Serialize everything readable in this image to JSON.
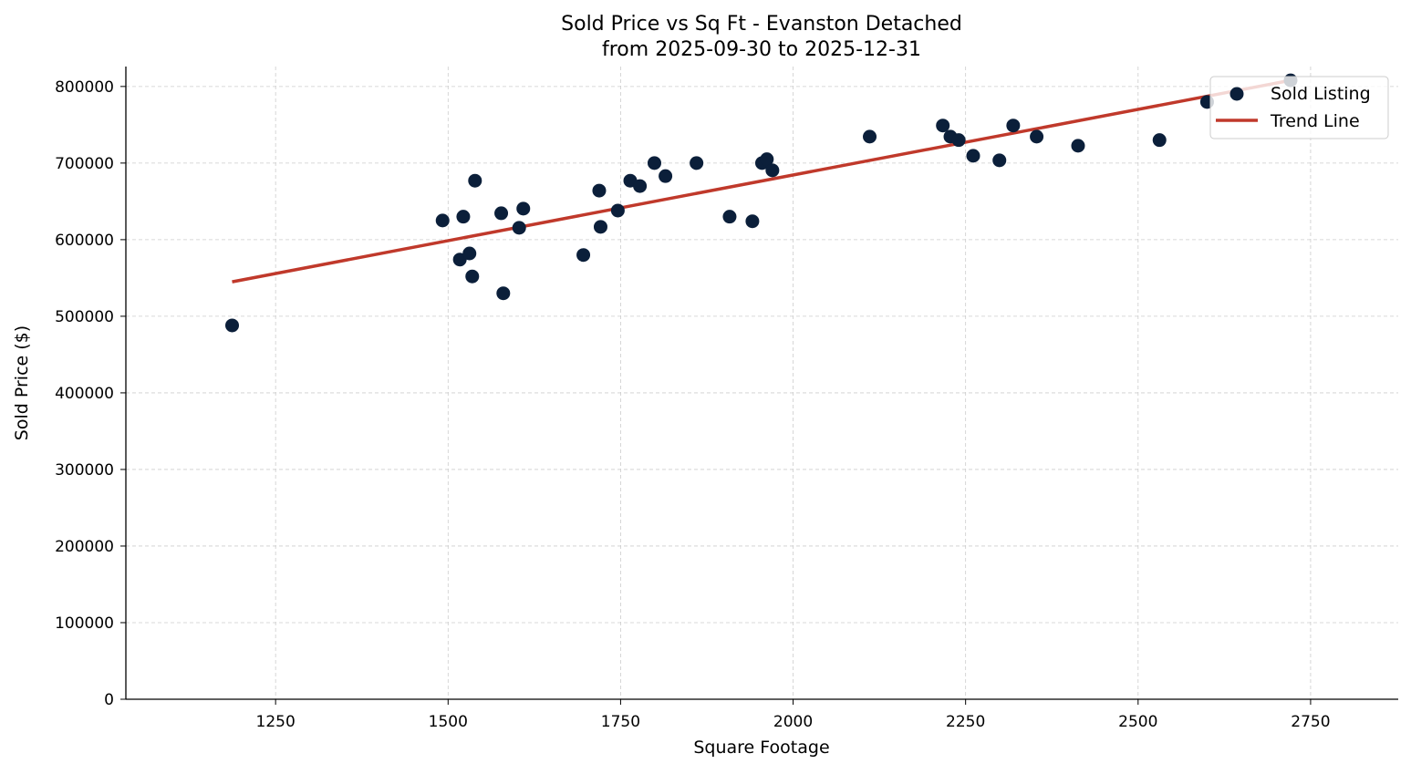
{
  "chart_data": {
    "type": "scatter",
    "title": "Sold Price vs Sq Ft - Evanston Detached",
    "subtitle": "from 2025-09-30 to 2025-12-31",
    "xlabel": "Square Footage",
    "ylabel": "Sold Price ($)",
    "xlim": [
      1033,
      2877
    ],
    "ylim": [
      0,
      826000
    ],
    "xticks": [
      1250,
      1500,
      1750,
      2000,
      2250,
      2500,
      2750
    ],
    "yticks": [
      0,
      100000,
      200000,
      300000,
      400000,
      500000,
      600000,
      700000,
      800000
    ],
    "grid": true,
    "legend_position": "top-right",
    "series": [
      {
        "name": "Sold Listing",
        "kind": "scatter",
        "color": "#0b1f3a",
        "points": [
          [
            1187,
            488000
          ],
          [
            1492,
            625000
          ],
          [
            1517,
            574000
          ],
          [
            1522,
            630000
          ],
          [
            1531,
            582000
          ],
          [
            1535,
            552000
          ],
          [
            1539,
            677000
          ],
          [
            1577,
            634500
          ],
          [
            1580,
            530000
          ],
          [
            1603,
            615500
          ],
          [
            1609,
            640500
          ],
          [
            1696,
            580000
          ],
          [
            1719,
            664000
          ],
          [
            1721,
            616700
          ],
          [
            1746,
            638000
          ],
          [
            1764,
            677000
          ],
          [
            1778,
            670000
          ],
          [
            1799,
            700000
          ],
          [
            1815,
            683000
          ],
          [
            1860,
            700000
          ],
          [
            1908,
            630000
          ],
          [
            1941,
            624000
          ],
          [
            1955,
            700000
          ],
          [
            1962,
            705000
          ],
          [
            1970,
            690500
          ],
          [
            2111,
            734500
          ],
          [
            2217,
            749000
          ],
          [
            2228,
            734500
          ],
          [
            2240,
            730000
          ],
          [
            2261,
            709500
          ],
          [
            2299,
            703600
          ],
          [
            2319,
            749000
          ],
          [
            2353,
            734500
          ],
          [
            2413,
            722600
          ],
          [
            2531,
            730000
          ],
          [
            2600,
            779800
          ],
          [
            2721,
            808000
          ]
        ]
      },
      {
        "name": "Trend Line",
        "kind": "line",
        "color": "#c0392b",
        "points": [
          [
            1187,
            545000
          ],
          [
            2721,
            808000
          ]
        ]
      }
    ]
  }
}
